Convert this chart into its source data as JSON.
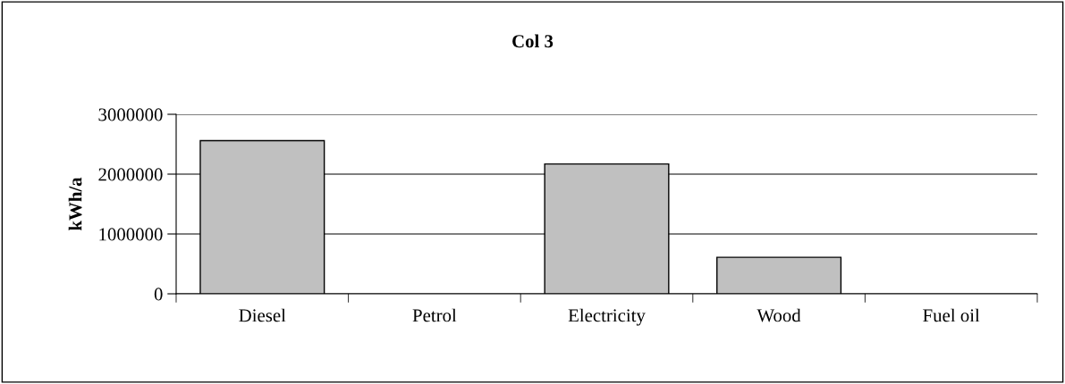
{
  "chart_data": {
    "type": "bar",
    "title": "Col 3",
    "ylabel": "kWh/a",
    "categories": [
      "Diesel",
      "Petrol",
      "Electricity",
      "Wood",
      "Fuel oil"
    ],
    "values": [
      2560000,
      0,
      2170000,
      610000,
      0
    ],
    "color": "#c0c0c0",
    "ylim": [
      0,
      3000000
    ],
    "yticks": [
      0,
      1000000,
      2000000,
      3000000
    ],
    "grid": "y",
    "legend": false
  }
}
